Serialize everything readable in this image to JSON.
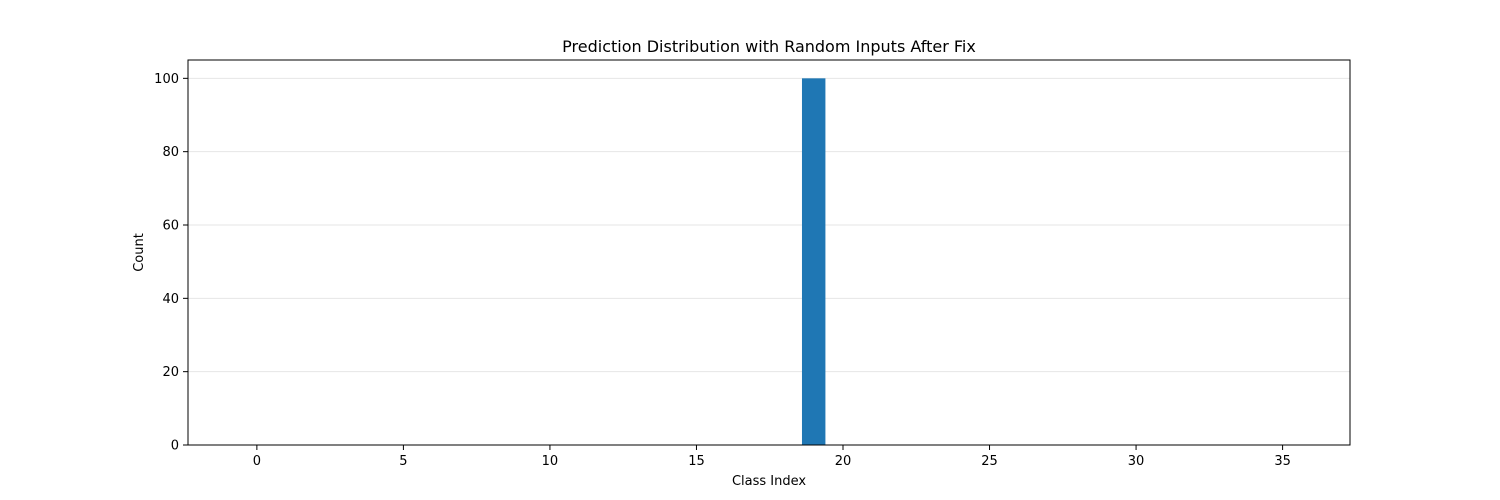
{
  "chart_data": {
    "type": "bar",
    "title": "Prediction Distribution with Random Inputs After Fix",
    "xlabel": "Class Index",
    "ylabel": "Count",
    "x": [
      19
    ],
    "values": [
      100
    ],
    "bar_width": 0.8,
    "xlim": [
      -2.35,
      37.3
    ],
    "ylim": [
      0,
      105
    ],
    "xticks": [
      0,
      5,
      10,
      15,
      20,
      25,
      30,
      35
    ],
    "yticks": [
      0,
      20,
      40,
      60,
      80,
      100
    ],
    "grid": "y",
    "bar_color": "#1f77b4",
    "grid_color": "#e6e6e6"
  }
}
